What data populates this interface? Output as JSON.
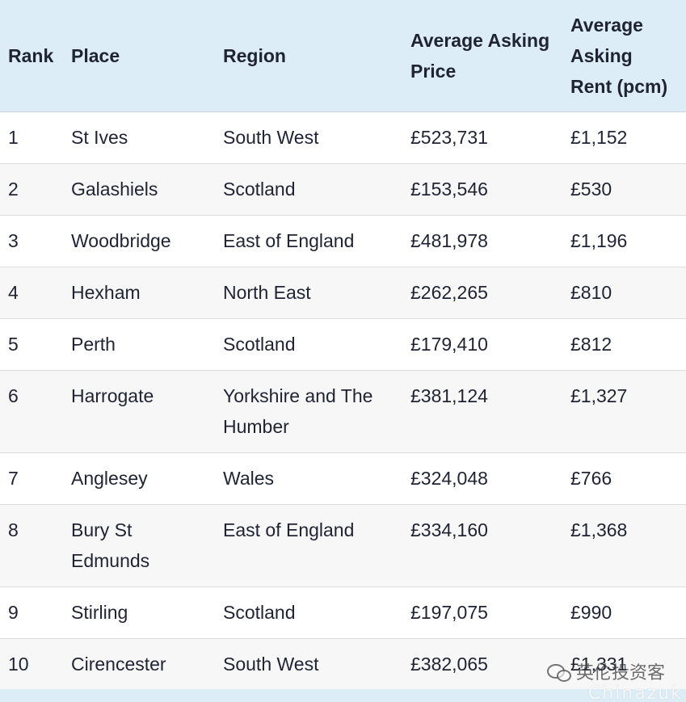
{
  "table": {
    "headers": {
      "rank": "Rank",
      "place": "Place",
      "region": "Region",
      "price": "Average Asking Price",
      "rent": "Average Asking Rent (pcm)"
    },
    "rows": [
      {
        "rank": "1",
        "place": "St Ives",
        "region": "South West",
        "price": "£523,731",
        "rent": "£1,152"
      },
      {
        "rank": "2",
        "place": "Galashiels",
        "region": "Scotland",
        "price": "£153,546",
        "rent": "£530"
      },
      {
        "rank": "3",
        "place": "Woodbridge",
        "region": "East of England",
        "price": "£481,978",
        "rent": "£1,196"
      },
      {
        "rank": "4",
        "place": "Hexham",
        "region": "North East",
        "price": "£262,265",
        "rent": "£810"
      },
      {
        "rank": "5",
        "place": "Perth",
        "region": "Scotland",
        "price": "£179,410",
        "rent": "£812"
      },
      {
        "rank": "6",
        "place": "Harrogate",
        "region": "Yorkshire and The Humber",
        "price": "£381,124",
        "rent": "£1,327"
      },
      {
        "rank": "7",
        "place": "Anglesey",
        "region": "Wales",
        "price": "£324,048",
        "rent": "£766"
      },
      {
        "rank": "8",
        "place": "Bury St Edmunds",
        "region": "East of England",
        "price": "£334,160",
        "rent": "£1,368"
      },
      {
        "rank": "9",
        "place": "Stirling",
        "region": "Scotland",
        "price": "£197,075",
        "rent": "£990"
      },
      {
        "rank": "10",
        "place": "Cirencester",
        "region": "South West",
        "price": "£382,065",
        "rent": "£1,331"
      }
    ]
  },
  "watermark": {
    "text": "英伦投资客",
    "subtext": "Chinazuk"
  },
  "colors": {
    "header_bg": "#dcedf7",
    "row_alt_bg": "#f7f7f7",
    "text": "#1f2333"
  }
}
